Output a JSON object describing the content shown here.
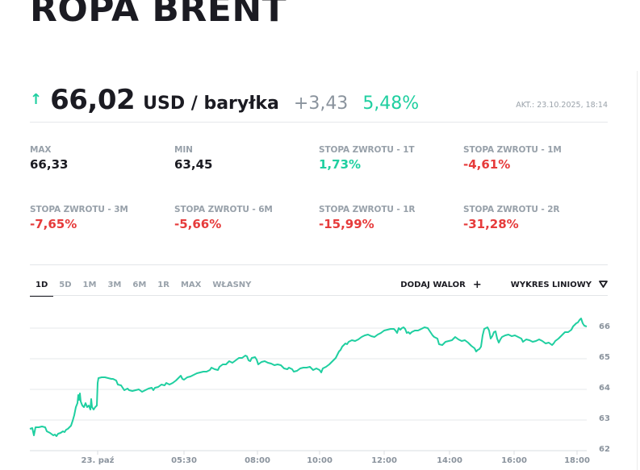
{
  "page": {
    "title": "ROPA BRENT"
  },
  "quote": {
    "direction_icon": "arrow-up-icon",
    "arrow_glyph": "↑",
    "price": "66,02",
    "unit": "USD / baryłka",
    "change": "+3,43",
    "change_pct": "5,48%",
    "updated": "AKT.: 23.10.2025, 18:14"
  },
  "stats": [
    {
      "label": "MAX",
      "value": "66,33",
      "tone": "neutral"
    },
    {
      "label": "MIN",
      "value": "63,45",
      "tone": "neutral"
    },
    {
      "label": "STOPA ZWROTU - 1T",
      "value": "1,73%",
      "tone": "pos"
    },
    {
      "label": "STOPA ZWROTU - 1M",
      "value": "-4,61%",
      "tone": "neg"
    },
    {
      "label": "STOPA ZWROTU - 3M",
      "value": "-7,65%",
      "tone": "neg"
    },
    {
      "label": "STOPA ZWROTU - 6M",
      "value": "-5,66%",
      "tone": "neg"
    },
    {
      "label": "STOPA ZWROTU - 1R",
      "value": "-15,99%",
      "tone": "neg"
    },
    {
      "label": "STOPA ZWROTU - 2R",
      "value": "-31,28%",
      "tone": "neg"
    }
  ],
  "range_tabs": [
    {
      "label": "1D",
      "active": true
    },
    {
      "label": "5D",
      "active": false
    },
    {
      "label": "1M",
      "active": false
    },
    {
      "label": "3M",
      "active": false
    },
    {
      "label": "6M",
      "active": false
    },
    {
      "label": "1R",
      "active": false
    },
    {
      "label": "MAX",
      "active": false
    },
    {
      "label": "WŁASNY",
      "active": false
    }
  ],
  "actions": {
    "add_label": "DODAJ WALOR",
    "add_icon": "+",
    "chart_type_label": "WYKRES LINIOWY",
    "chart_type_icon": "▽"
  },
  "colors": {
    "accent": "#1fcfa0",
    "negative": "#e63b3b",
    "grid": "#e6e8eb",
    "axis_text": "#8a939d"
  },
  "chart_data": {
    "type": "line",
    "title": "",
    "xlabel": "",
    "ylabel": "",
    "ylim": [
      62,
      66.4
    ],
    "grid": true,
    "legend": "none",
    "y_axis_position": "right",
    "yticks": [
      "62",
      "63",
      "64",
      "65",
      "66"
    ],
    "xticks": [
      "23. paź",
      "05:30",
      "08:00",
      "10:00",
      "12:00",
      "14:00",
      "16:00",
      "18:00"
    ],
    "series": [
      {
        "name": "Ropa Brent",
        "color": "#1fcfa0",
        "x": [
          "22:00",
          "22:30",
          "23:00",
          "23:30",
          "00:00",
          "00:30",
          "01:00",
          "01:30",
          "02:00",
          "02:30",
          "03:00",
          "03:30",
          "04:00",
          "04:30",
          "05:00",
          "05:30",
          "06:00",
          "06:30",
          "07:00",
          "07:30",
          "08:00",
          "08:30",
          "09:00",
          "09:30",
          "10:00",
          "10:30",
          "11:00",
          "11:30",
          "12:00",
          "12:30",
          "13:00",
          "13:30",
          "14:00",
          "14:15",
          "14:30",
          "15:00",
          "15:30",
          "16:00",
          "16:30",
          "17:00",
          "17:30",
          "18:00",
          "18:10",
          "18:14"
        ],
        "values": [
          62.75,
          62.55,
          62.72,
          62.55,
          62.62,
          62.85,
          63.6,
          63.3,
          64.4,
          64.35,
          64.0,
          64.05,
          64.1,
          64.3,
          64.35,
          64.5,
          64.58,
          64.7,
          64.9,
          65.0,
          64.85,
          64.8,
          64.7,
          64.75,
          64.8,
          65.25,
          65.5,
          65.6,
          66.0,
          65.95,
          65.9,
          66.0,
          65.55,
          65.3,
          66.0,
          65.55,
          65.7,
          65.65,
          65.6,
          65.55,
          65.8,
          66.1,
          66.3,
          66.02
        ]
      }
    ]
  }
}
